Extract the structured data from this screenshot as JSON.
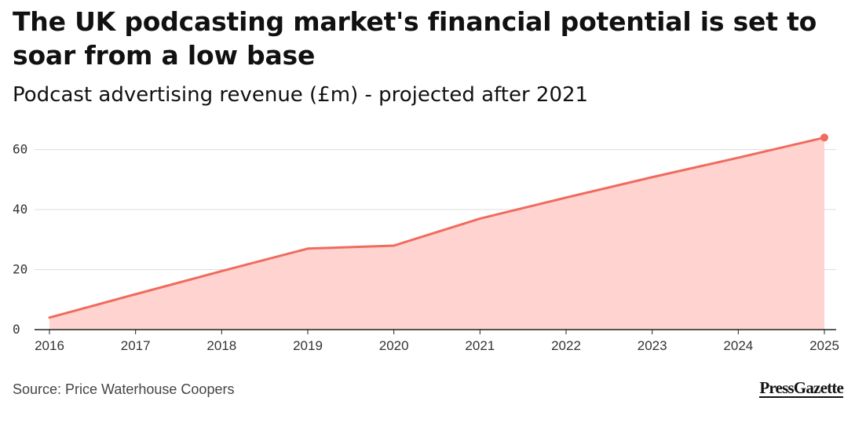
{
  "header": {
    "title": "The UK podcasting market's financial potential is set to soar from a low base",
    "subtitle": "Podcast advertising revenue (£m) - projected after 2021"
  },
  "footer": {
    "source": "Source: Price Waterhouse Coopers",
    "logo_text": "PressGazette"
  },
  "colors": {
    "line": "#f06b5e",
    "area": "#ffd3cf",
    "grid": "#dddddd",
    "axis": "#222222"
  },
  "chart_data": {
    "type": "area",
    "title": "The UK podcasting market's financial potential is set to soar from a low base",
    "subtitle": "Podcast advertising revenue (£m) - projected after 2021",
    "x": [
      "2016",
      "2017",
      "2018",
      "2019",
      "2020",
      "2021",
      "2022",
      "2023",
      "2024",
      "2025"
    ],
    "series": [
      {
        "values": [
          4,
          11.8,
          19.5,
          27,
          28,
          37,
          44,
          50.8,
          57.3,
          64
        ]
      }
    ],
    "y_ticks": [
      0,
      20,
      40,
      60
    ],
    "ylim": [
      0,
      68
    ],
    "grid": true,
    "end_marker": true
  }
}
